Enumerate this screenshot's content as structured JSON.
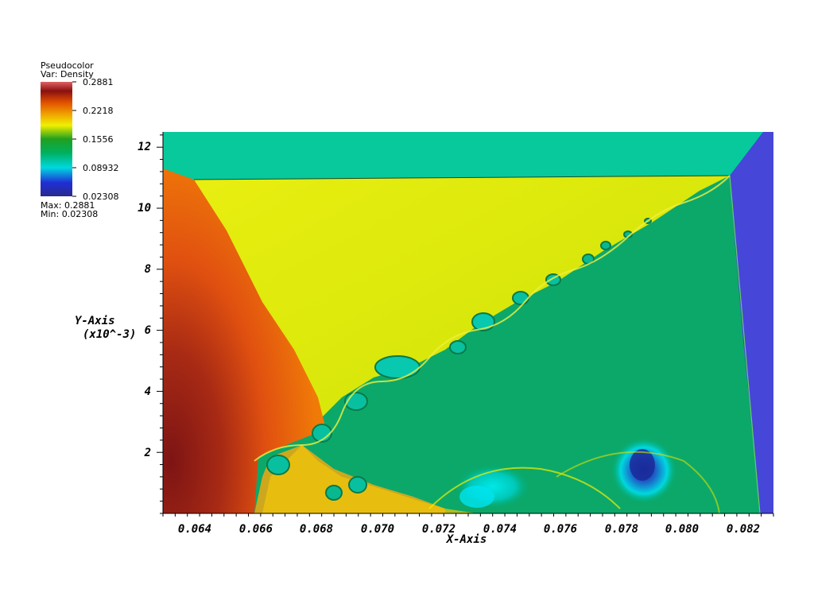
{
  "legend": {
    "title": "Pseudocolor",
    "variable": "Var: Density",
    "ticks": [
      "0.2881",
      "0.2218",
      "0.1556",
      "0.08932",
      "0.02308"
    ],
    "max_label": "Max: 0.2881",
    "min_label": "Min: 0.02308"
  },
  "chart_data": {
    "type": "heatmap",
    "title": "Pseudocolor",
    "variable": "Density",
    "xlabel": "X-Axis",
    "ylabel": "Y-Axis",
    "ylabel_scale": "(x10^-3)",
    "xlim": [
      0.063,
      0.083
    ],
    "ylim": [
      0,
      12.5
    ],
    "xticks": [
      "0.064",
      "0.066",
      "0.068",
      "0.070",
      "0.072",
      "0.074",
      "0.076",
      "0.078",
      "0.080",
      "0.082"
    ],
    "yticks": [
      "2",
      "4",
      "6",
      "8",
      "10",
      "12"
    ],
    "color_range": [
      0.02308,
      0.2881
    ],
    "colormap": [
      "#2a2a8c",
      "#00e0e0",
      "#00a020",
      "#f0f000",
      "#f07000",
      "#8a1010",
      "#e06060"
    ]
  }
}
